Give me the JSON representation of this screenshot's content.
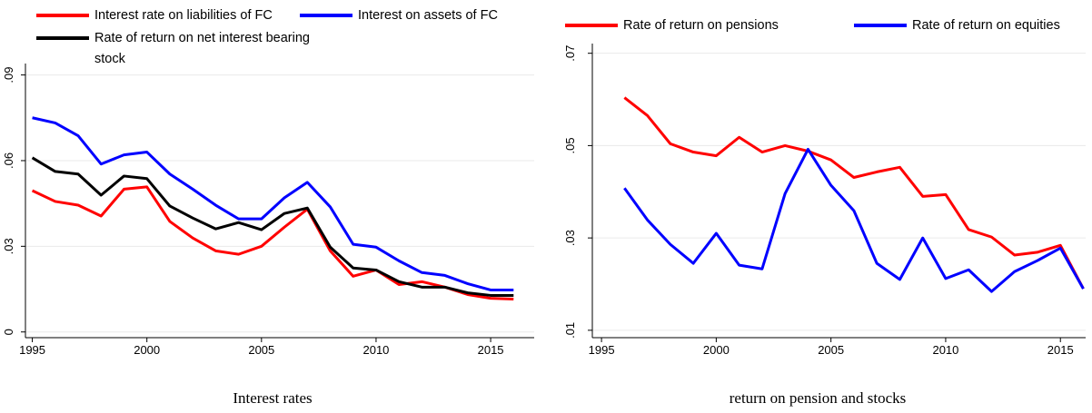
{
  "chart_data": [
    {
      "type": "line",
      "title": "Interest rates",
      "x": [
        1995,
        1996,
        1997,
        1998,
        1999,
        2000,
        2001,
        2002,
        2003,
        2004,
        2005,
        2006,
        2007,
        2008,
        2009,
        2010,
        2011,
        2012,
        2013,
        2014,
        2015,
        2016
      ],
      "series": [
        {
          "name": "Interest rate on liabilities of FC",
          "color": "#ff0000",
          "values": [
            0.0495,
            0.0457,
            0.0444,
            0.0406,
            0.05,
            0.0508,
            0.0387,
            0.0329,
            0.0284,
            0.0272,
            0.03,
            0.0367,
            0.043,
            0.0284,
            0.0195,
            0.0217,
            0.0166,
            0.0176,
            0.0157,
            0.0131,
            0.0118,
            0.0115
          ]
        },
        {
          "name": "Interest on assets of FC",
          "color": "#0000ff",
          "values": [
            0.075,
            0.0732,
            0.0687,
            0.0588,
            0.062,
            0.063,
            0.0553,
            0.05,
            0.0444,
            0.0396,
            0.0396,
            0.047,
            0.0524,
            0.0438,
            0.0307,
            0.0297,
            0.0249,
            0.0208,
            0.0198,
            0.0169,
            0.0147,
            0.0147
          ]
        },
        {
          "name": "Rate of return on net interest bearing stock",
          "color": "#000000",
          "values": [
            0.061,
            0.0562,
            0.0553,
            0.0479,
            0.0546,
            0.0537,
            0.0441,
            0.0399,
            0.0361,
            0.0383,
            0.0358,
            0.0415,
            0.0434,
            0.0297,
            0.0224,
            0.0217,
            0.0176,
            0.0157,
            0.0157,
            0.0137,
            0.0128,
            0.0128
          ]
        }
      ],
      "xlim": [
        1994.7,
        2016.9
      ],
      "xticks": [
        1995,
        2000,
        2005,
        2010,
        2015
      ],
      "ylim": [
        -0.002,
        0.094
      ],
      "yticks": [
        0,
        {
          "value": 0.03,
          "label": ".03"
        },
        {
          "value": 0.06,
          "label": ".06"
        },
        {
          "value": 0.09,
          "label": ".09"
        }
      ],
      "grid": true
    },
    {
      "type": "line",
      "title": "return on pension and stocks",
      "x": [
        1996,
        1997,
        1998,
        1999,
        2000,
        2001,
        2002,
        2003,
        2004,
        2005,
        2006,
        2007,
        2008,
        2009,
        2010,
        2011,
        2012,
        2013,
        2014,
        2015,
        2016
      ],
      "series": [
        {
          "name": "Rate of return on pensions",
          "color": "#ff0000",
          "values": [
            0.0604,
            0.0565,
            0.0504,
            0.0486,
            0.0478,
            0.0518,
            0.0486,
            0.05,
            0.0488,
            0.0469,
            0.0431,
            0.0443,
            0.0453,
            0.039,
            0.0394,
            0.0318,
            0.0302,
            0.0263,
            0.0269,
            0.0284,
            0.019
          ]
        },
        {
          "name": "Rate of return on equities",
          "color": "#0000ff",
          "values": [
            0.0408,
            0.0339,
            0.0286,
            0.0245,
            0.031,
            0.0241,
            0.0233,
            0.0396,
            0.0492,
            0.0414,
            0.0359,
            0.0245,
            0.021,
            0.03,
            0.0212,
            0.0231,
            0.0184,
            0.0227,
            0.0251,
            0.0278,
            0.019
          ]
        }
      ],
      "xlim": [
        1994.6,
        2016.1
      ],
      "xticks": [
        1995,
        2000,
        2005,
        2010,
        2015
      ],
      "ylim": [
        0.0084,
        0.0721
      ],
      "yticks": [
        {
          "value": 0.01,
          "label": ".01"
        },
        {
          "value": 0.03,
          "label": ".03"
        },
        {
          "value": 0.05,
          "label": ".05"
        },
        {
          "value": 0.07,
          "label": ".07"
        }
      ],
      "grid": true
    }
  ]
}
